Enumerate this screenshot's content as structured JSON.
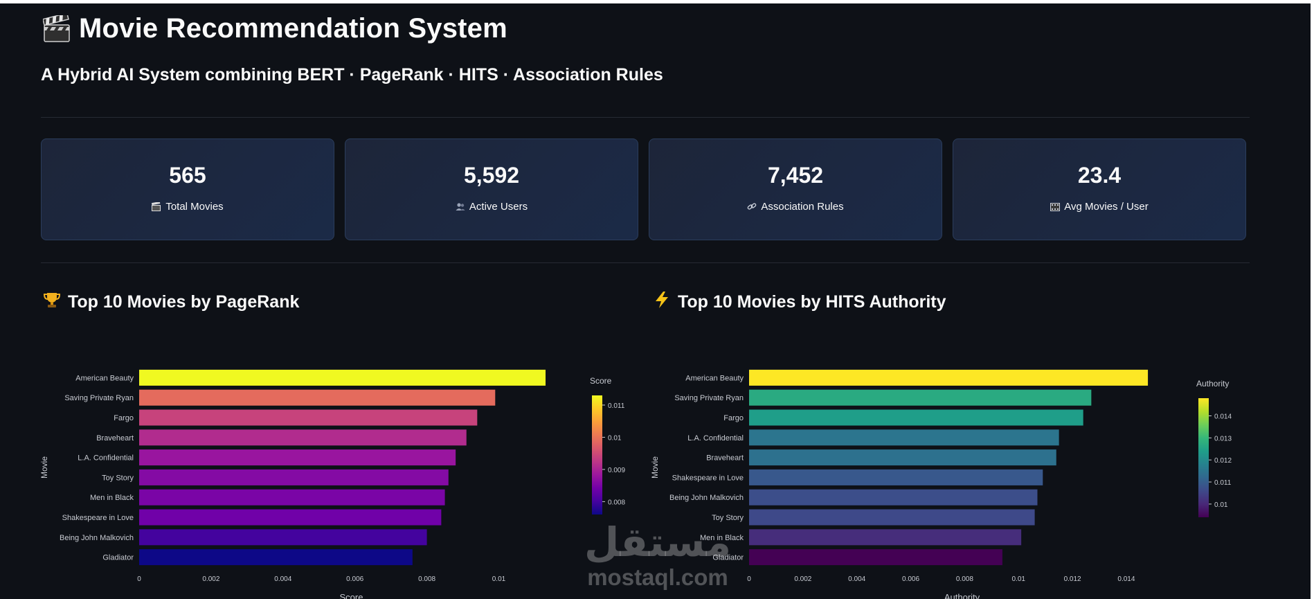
{
  "header": {
    "title": "Movie Recommendation System",
    "title_icon": "clapperboard-icon",
    "subtitle": "A Hybrid AI System combining BERT · PageRank · HITS · Association Rules"
  },
  "metrics": [
    {
      "value": "565",
      "label": "Total Movies",
      "icon": "clapper-icon"
    },
    {
      "value": "5,592",
      "label": "Active Users",
      "icon": "users-icon"
    },
    {
      "value": "7,452",
      "label": "Association Rules",
      "icon": "link-icon"
    },
    {
      "value": "23.4",
      "label": "Avg Movies / User",
      "icon": "film-frames-icon"
    }
  ],
  "sections": {
    "pagerank_title": "Top 10 Movies by PageRank",
    "pagerank_icon": "trophy-icon",
    "hits_title": "Top 10 Movies by HITS Authority",
    "hits_icon": "lightning-icon"
  },
  "chart_data": [
    {
      "type": "bar",
      "orientation": "horizontal",
      "categories": [
        "American Beauty",
        "Saving Private Ryan",
        "Fargo",
        "Braveheart",
        "L.A. Confidential",
        "Toy Story",
        "Men in Black",
        "Shakespeare in Love",
        "Being John Malkovich",
        "Gladiator"
      ],
      "values": [
        0.0113,
        0.0099,
        0.0094,
        0.0091,
        0.0088,
        0.0086,
        0.0085,
        0.0084,
        0.008,
        0.0076
      ],
      "xlabel": "Score",
      "ylabel": "Movie",
      "xlim": [
        0,
        0.0118
      ],
      "xticks": [
        0,
        0.002,
        0.004,
        0.006,
        0.008,
        0.01
      ],
      "xtick_labels": [
        "0",
        "0.002",
        "0.004",
        "0.006",
        "0.008",
        "0.01"
      ],
      "colorbar": {
        "title": "Score",
        "colorscale": "plasma",
        "range": [
          0.0076,
          0.0113
        ],
        "ticks": [
          0.008,
          0.009,
          0.01,
          0.011
        ],
        "tick_labels": [
          "0.008",
          "0.009",
          "0.01",
          "0.011"
        ]
      },
      "grid": false,
      "legend": "colorbar-right"
    },
    {
      "type": "bar",
      "orientation": "horizontal",
      "categories": [
        "American Beauty",
        "Saving Private Ryan",
        "Fargo",
        "L.A. Confidential",
        "Braveheart",
        "Shakespeare in Love",
        "Being John Malkovich",
        "Toy Story",
        "Men in Black",
        "Gladiator"
      ],
      "values": [
        0.0148,
        0.0127,
        0.0124,
        0.0115,
        0.0114,
        0.0109,
        0.0107,
        0.0106,
        0.0101,
        0.0094
      ],
      "xlabel": "Authority",
      "ylabel": "Movie",
      "xlim": [
        0,
        0.0158
      ],
      "xticks": [
        0,
        0.002,
        0.004,
        0.006,
        0.008,
        0.01,
        0.012,
        0.014
      ],
      "xtick_labels": [
        "0",
        "0.002",
        "0.004",
        "0.006",
        "0.008",
        "0.01",
        "0.012",
        "0.014"
      ],
      "colorbar": {
        "title": "Authority",
        "colorscale": "viridis",
        "range": [
          0.0094,
          0.0148
        ],
        "ticks": [
          0.01,
          0.011,
          0.012,
          0.013,
          0.014
        ],
        "tick_labels": [
          "0.01",
          "0.011",
          "0.012",
          "0.013",
          "0.014"
        ]
      },
      "grid": false,
      "legend": "colorbar-right"
    }
  ],
  "watermark": {
    "arabic": "مستقل",
    "latin": "mostaql.com"
  }
}
